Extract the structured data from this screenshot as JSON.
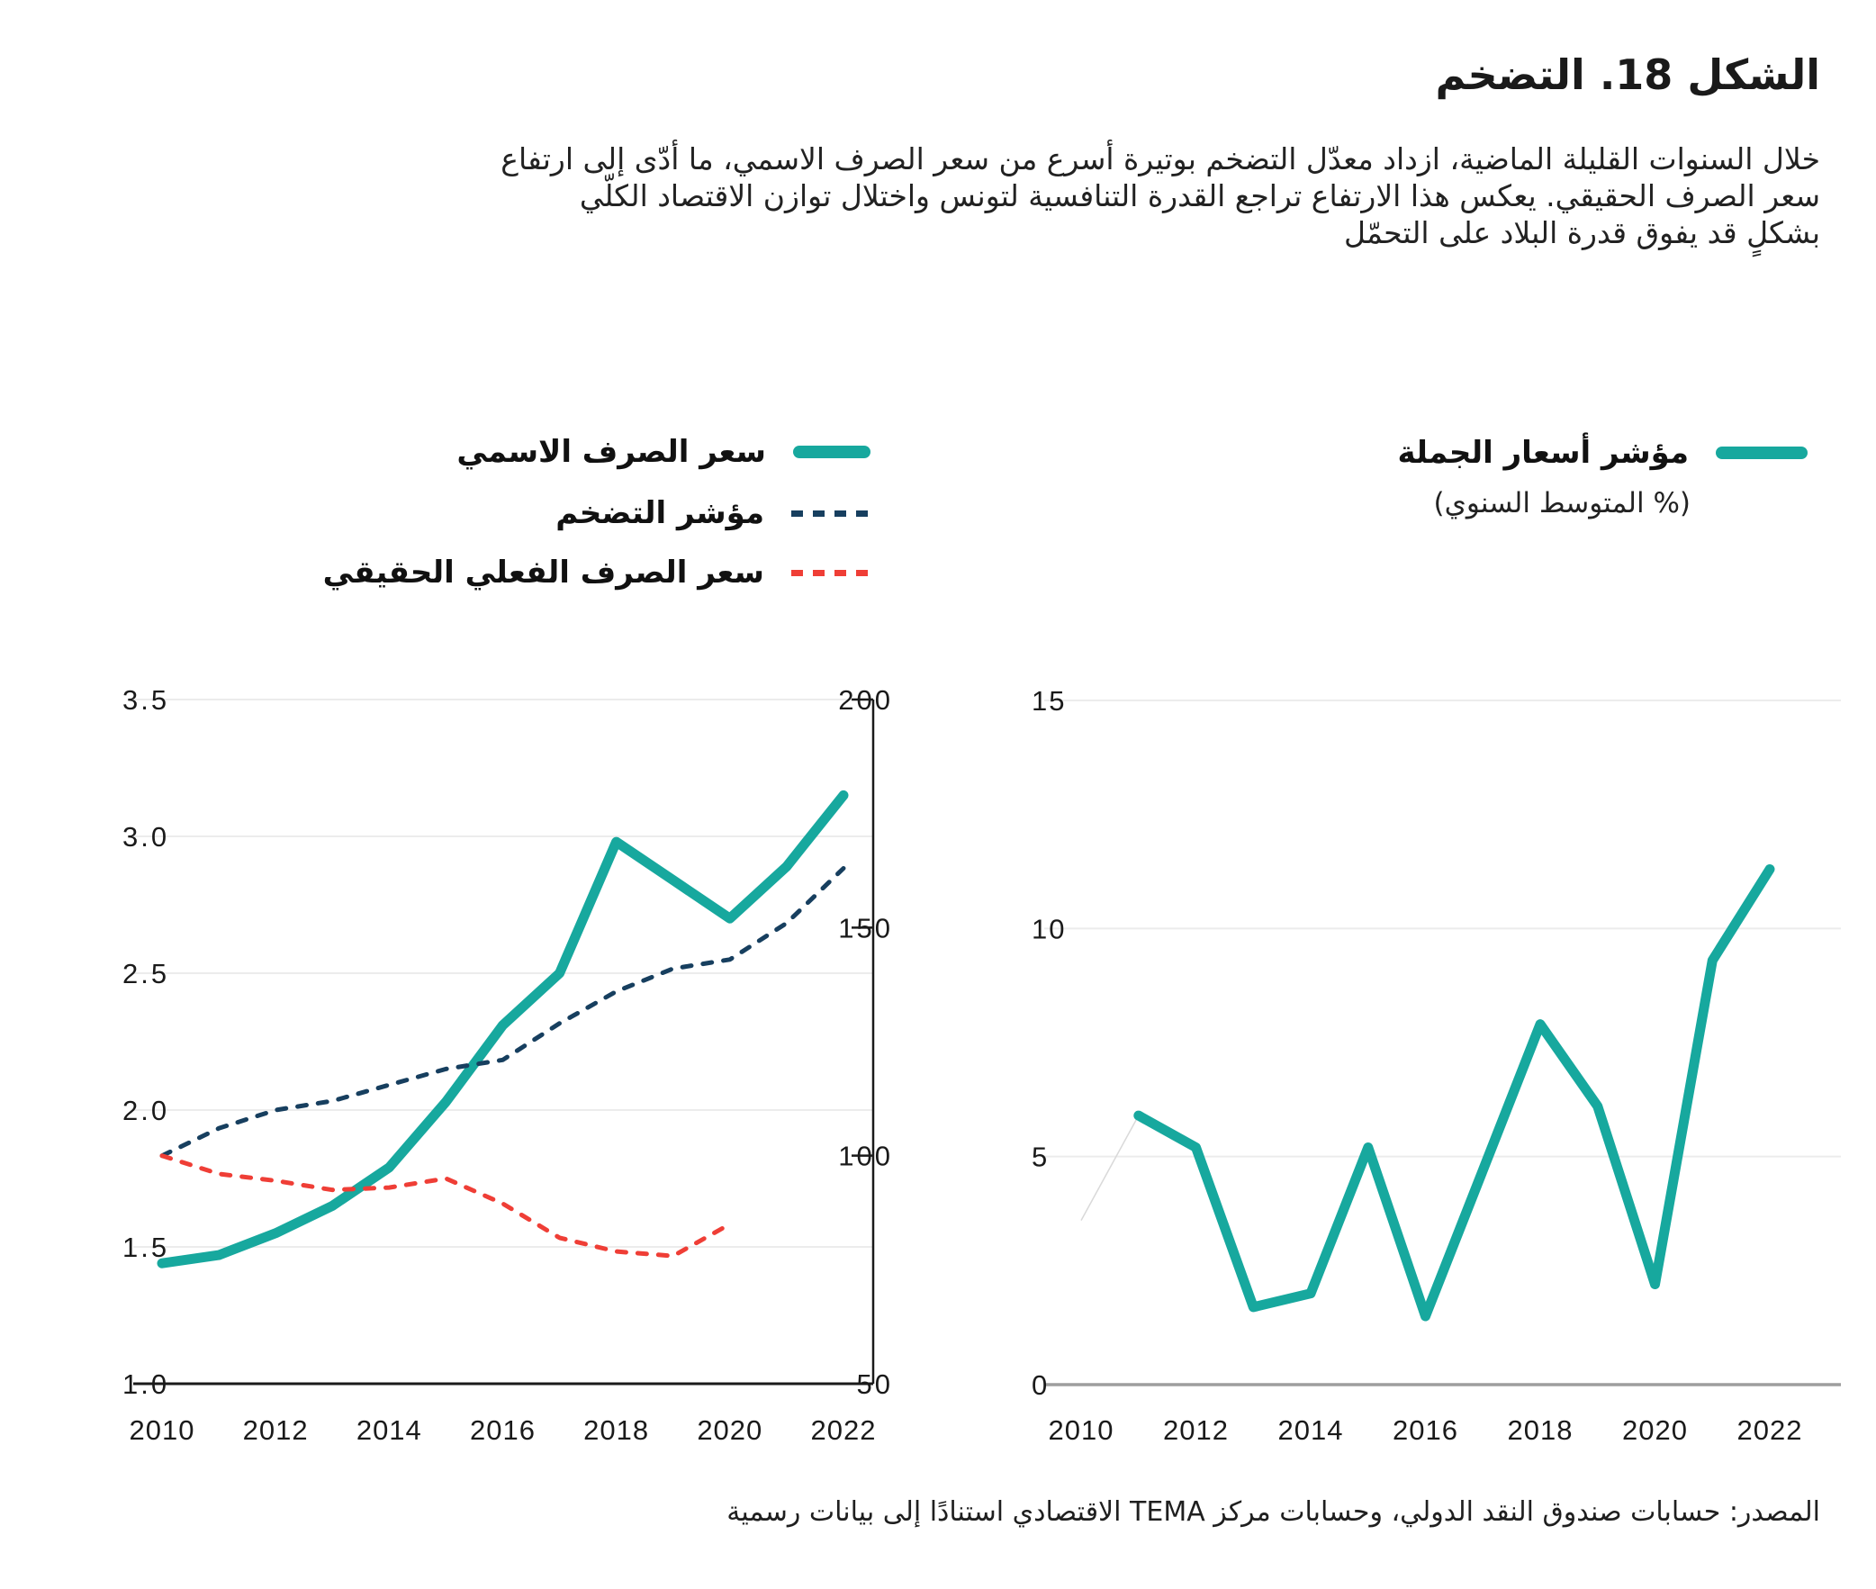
{
  "figure": {
    "title": "الشكل 18. التضخم",
    "description_lines": [
      "خلال السنوات القليلة الماضية، ازداد معدّل التضخم بوتيرة أسرع من سعر الصرف الاسمي، ما أدّى إلى ارتفاع",
      "سعر الصرف الحقيقي. يعكس هذا الارتفاع تراجع القدرة التنافسية لتونس واختلال توازن الاقتصاد الكلّي",
      "بشكلٍ قد يفوق قدرة البلاد على التحمّل"
    ],
    "source": "المصدر: حسابات صندوق النقد الدولي،  وحسابات مركز TEMA الاقتصادي استنادًا إلى بيانات رسمية"
  },
  "colors": {
    "teal": "#17a89e",
    "navy": "#173f5f",
    "red": "#ef3e36",
    "grid": "#ececec",
    "axis_dark": "#1a1a1a",
    "axis_gray": "#9e9e9e",
    "faint_connector": "#d9d9d9",
    "text": "#1a1a1a"
  },
  "legend_left": {
    "items": [
      {
        "label": "سعر الصرف الاسمي",
        "style": "solid",
        "color_key": "teal"
      },
      {
        "label": "مؤشر التضخم",
        "style": "dashed",
        "color_key": "navy"
      },
      {
        "label": "سعر الصرف الفعلي الحقيقي",
        "style": "dashed",
        "color_key": "red"
      }
    ]
  },
  "legend_right": {
    "label": "مؤشر أسعار الجملة",
    "subtitle": "(% المتوسط السنوي)"
  },
  "chart_data": [
    {
      "id": "exchange-inflation-chart",
      "type": "line",
      "x": [
        2010,
        2011,
        2012,
        2013,
        2014,
        2015,
        2016,
        2017,
        2018,
        2019,
        2020,
        2021,
        2022
      ],
      "x_tick_labels": [
        "2010",
        "2012",
        "2014",
        "2016",
        "2018",
        "2020",
        "2022"
      ],
      "left_axis": {
        "range": [
          1.0,
          3.5
        ],
        "ticks": [
          "3.5",
          "3.0",
          "2.5",
          "2.0",
          "1.5",
          "1.0"
        ]
      },
      "right_axis": {
        "range": [
          50,
          200
        ],
        "ticks": [
          "200",
          "150",
          "100",
          "50"
        ]
      },
      "grid": true,
      "legend_position": "top",
      "series": [
        {
          "key": "nominal_exchange_rate",
          "name": "سعر الصرف الاسمي",
          "axis": "left",
          "style": "solid",
          "color_key": "teal",
          "values": [
            1.44,
            1.47,
            1.55,
            1.65,
            1.79,
            2.03,
            2.31,
            2.5,
            2.98,
            2.84,
            2.7,
            2.89,
            3.15
          ]
        },
        {
          "key": "inflation_index",
          "name": "مؤشر التضخم",
          "axis": "right",
          "style": "dashed",
          "color_key": "navy",
          "values": [
            100,
            106,
            110,
            112,
            115.5,
            119,
            121,
            129,
            136,
            141,
            143,
            151,
            163
          ]
        },
        {
          "key": "real_effective_exchange_rate",
          "name": "سعر الصرف الفعلي الحقيقي",
          "axis": "right",
          "style": "dashed",
          "color_key": "red",
          "values": [
            100,
            96,
            94.5,
            92.5,
            93,
            95,
            89.5,
            82,
            79,
            78,
            85
          ],
          "x_end": 2020
        }
      ]
    },
    {
      "id": "wholesale-price-chart",
      "type": "line",
      "x_tick_labels": [
        "2010",
        "2012",
        "2014",
        "2016",
        "2018",
        "2020",
        "2022"
      ],
      "y_axis": {
        "range": [
          0,
          15
        ],
        "ticks": [
          "15",
          "10",
          "5",
          "0"
        ]
      },
      "grid": true,
      "series": [
        {
          "key": "wholesale_price_index",
          "name": "مؤشر أسعار الجملة",
          "style": "solid",
          "color_key": "teal",
          "x": [
            2011,
            2012,
            2013,
            2014,
            2015,
            2016,
            2017,
            2018,
            2019,
            2020,
            2021,
            2022
          ],
          "values": [
            5.9,
            5.2,
            1.7,
            2.0,
            5.2,
            1.5,
            4.7,
            7.9,
            6.1,
            2.2,
            9.3,
            11.3
          ]
        }
      ],
      "faint_segment": {
        "x": [
          2010,
          2011
        ],
        "values": [
          3.6,
          5.9
        ]
      }
    }
  ]
}
